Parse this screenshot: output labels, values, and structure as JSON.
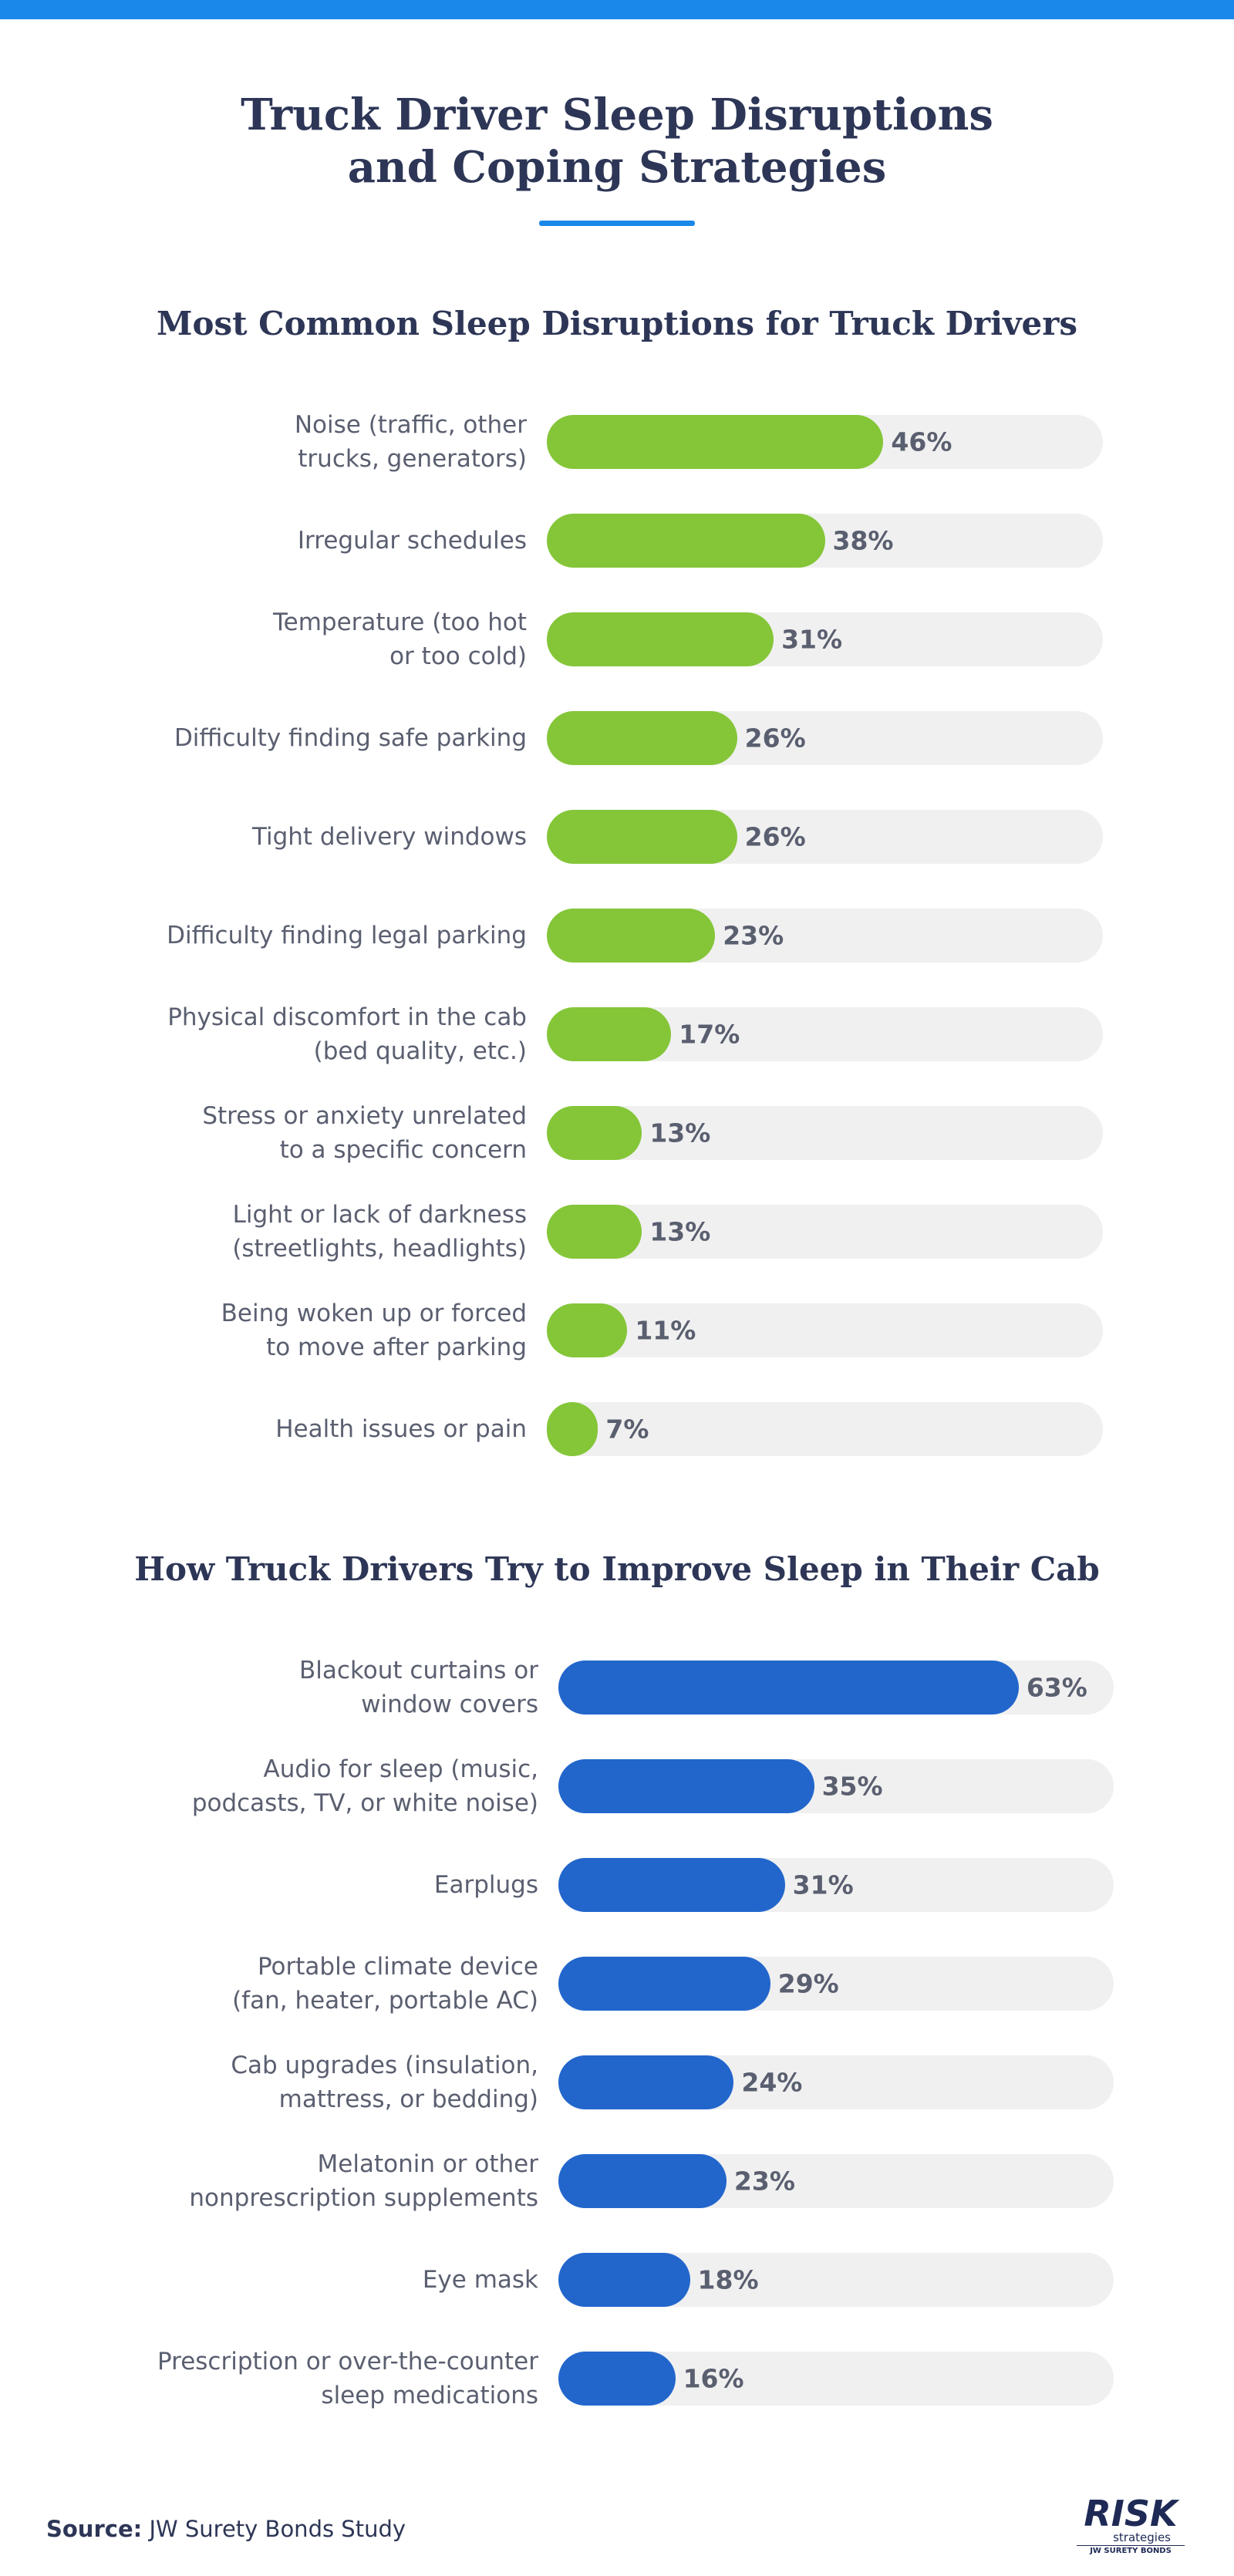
{
  "header": {
    "title": "Truck Driver Sleep Disruptions\nand Coping Strategies"
  },
  "chart_data": [
    {
      "type": "bar",
      "orientation": "horizontal",
      "title": "Most Common Sleep Disruptions for Truck Drivers",
      "categories": [
        "Noise (traffic, other\ntrucks, generators)",
        "Irregular schedules",
        "Temperature (too hot\nor too cold)",
        "Difficulty finding safe parking",
        "Tight delivery windows",
        "Difficulty finding legal parking",
        "Physical discomfort in the cab\n(bed quality, etc.)",
        "Stress or anxiety unrelated\nto a specific concern",
        "Light or lack of darkness\n(streetlights, headlights)",
        "Being woken up or forced\nto move after parking",
        "Health issues or pain"
      ],
      "values": [
        46,
        38,
        31,
        26,
        26,
        23,
        17,
        13,
        13,
        11,
        7
      ],
      "value_labels": [
        "46%",
        "38%",
        "31%",
        "26%",
        "26%",
        "23%",
        "17%",
        "13%",
        "13%",
        "11%",
        "7%"
      ],
      "color": "#84c638",
      "xlim": [
        0,
        76
      ]
    },
    {
      "type": "bar",
      "orientation": "horizontal",
      "title": "How Truck Drivers Try to Improve Sleep in Their Cab",
      "categories": [
        "Blackout curtains or\nwindow covers",
        "Audio for sleep (music,\npodcasts, TV, or white noise)",
        "Earplugs",
        "Portable climate device\n(fan, heater, portable AC)",
        "Cab upgrades (insulation,\nmattress, or bedding)",
        "Melatonin or other\nnonprescription supplements",
        "Eye mask",
        "Prescription or over-the-counter\nsleep medications"
      ],
      "values": [
        63,
        35,
        31,
        29,
        24,
        23,
        18,
        16
      ],
      "value_labels": [
        "63%",
        "35%",
        "31%",
        "29%",
        "24%",
        "23%",
        "18%",
        "16%"
      ],
      "color": "#2266cc",
      "xlim": [
        0,
        76
      ]
    }
  ],
  "footer": {
    "source_label": "Source:",
    "source": "JW Surety Bonds Study",
    "logo": "RISK",
    "logo_sub": "strategies",
    "logo_tag": "JW SURETY BONDS"
  }
}
